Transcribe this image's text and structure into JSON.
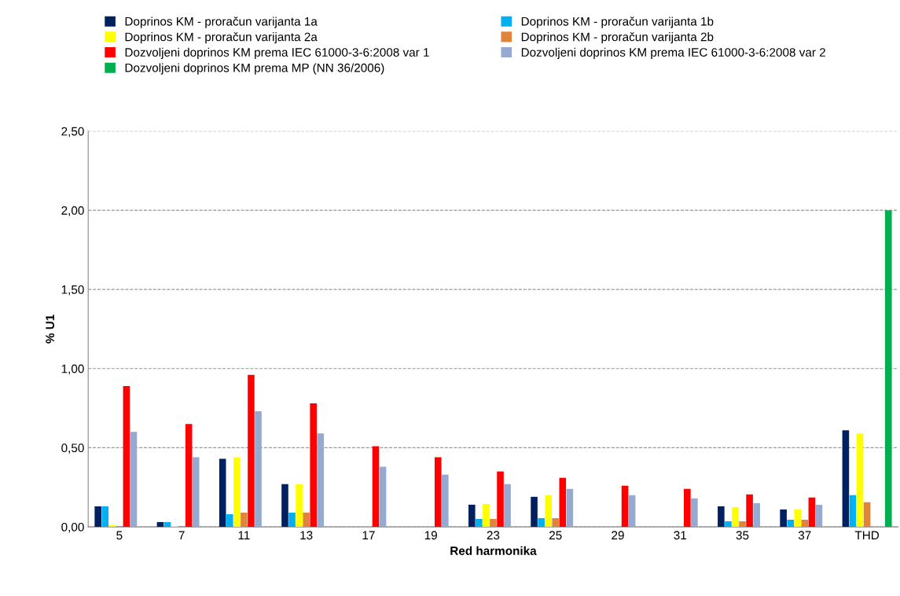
{
  "chart_data": {
    "type": "bar",
    "xlabel": "Red harmonika",
    "ylabel": "% U1",
    "categories": [
      "5",
      "7",
      "11",
      "13",
      "17",
      "19",
      "23",
      "25",
      "29",
      "31",
      "35",
      "37",
      "THD"
    ],
    "series": [
      {
        "name": "Doprinos KM - proračun varijanta 1a",
        "color": "#002060",
        "values": [
          0.13,
          0.03,
          0.43,
          0.27,
          0,
          0,
          0.14,
          0.19,
          0,
          0,
          0.13,
          0.11,
          0.61
        ]
      },
      {
        "name": "Doprinos KM - proračun varijanta 1b",
        "color": "#00b0f0",
        "values": [
          0.13,
          0.03,
          0.08,
          0.09,
          0,
          0,
          0.05,
          0.055,
          0,
          0,
          0.035,
          0.045,
          0.2
        ]
      },
      {
        "name": "Doprinos KM - proračun varijanta 2a",
        "color": "#ffff00",
        "values": [
          0.01,
          0.005,
          0.44,
          0.27,
          0,
          0,
          0.145,
          0.2,
          0,
          0,
          0.125,
          0.11,
          0.59
        ]
      },
      {
        "name": "Doprinos KM - proračun varijanta 2b",
        "color": "#e0843c",
        "values": [
          0.005,
          0.005,
          0.09,
          0.09,
          0,
          0,
          0.05,
          0.055,
          0,
          0,
          0.035,
          0.045,
          0.155
        ]
      },
      {
        "name": "Dozvoljeni doprinos KM prema IEC 61000-3-6:2008 var 1",
        "color": "#ff0000",
        "values": [
          0.89,
          0.65,
          0.96,
          0.78,
          0.51,
          0.44,
          0.35,
          0.31,
          0.26,
          0.24,
          0.205,
          0.185,
          null
        ]
      },
      {
        "name": "Dozvoljeni doprinos KM prema IEC 61000-3-6:2008 var 2",
        "color": "#95a9d1",
        "values": [
          0.6,
          0.44,
          0.73,
          0.59,
          0.38,
          0.33,
          0.27,
          0.24,
          0.2,
          0.18,
          0.15,
          0.14,
          null
        ]
      },
      {
        "name": "Dozvoljeni doprinos KM prema MP (NN 36/2006)",
        "color": "#00b050",
        "values": [
          null,
          null,
          null,
          null,
          null,
          null,
          null,
          null,
          null,
          null,
          null,
          null,
          2.0
        ]
      }
    ],
    "ylim": [
      0,
      2.5
    ],
    "yticks": [
      {
        "value": 0,
        "label": "0,00"
      },
      {
        "value": 0.5,
        "label": "0,50"
      },
      {
        "value": 1.0,
        "label": "1,00"
      },
      {
        "value": 1.5,
        "label": "1,50"
      },
      {
        "value": 2.0,
        "label": "2,00"
      },
      {
        "value": 2.5,
        "label": "2,50"
      }
    ],
    "grid": "y",
    "legend": "top"
  }
}
